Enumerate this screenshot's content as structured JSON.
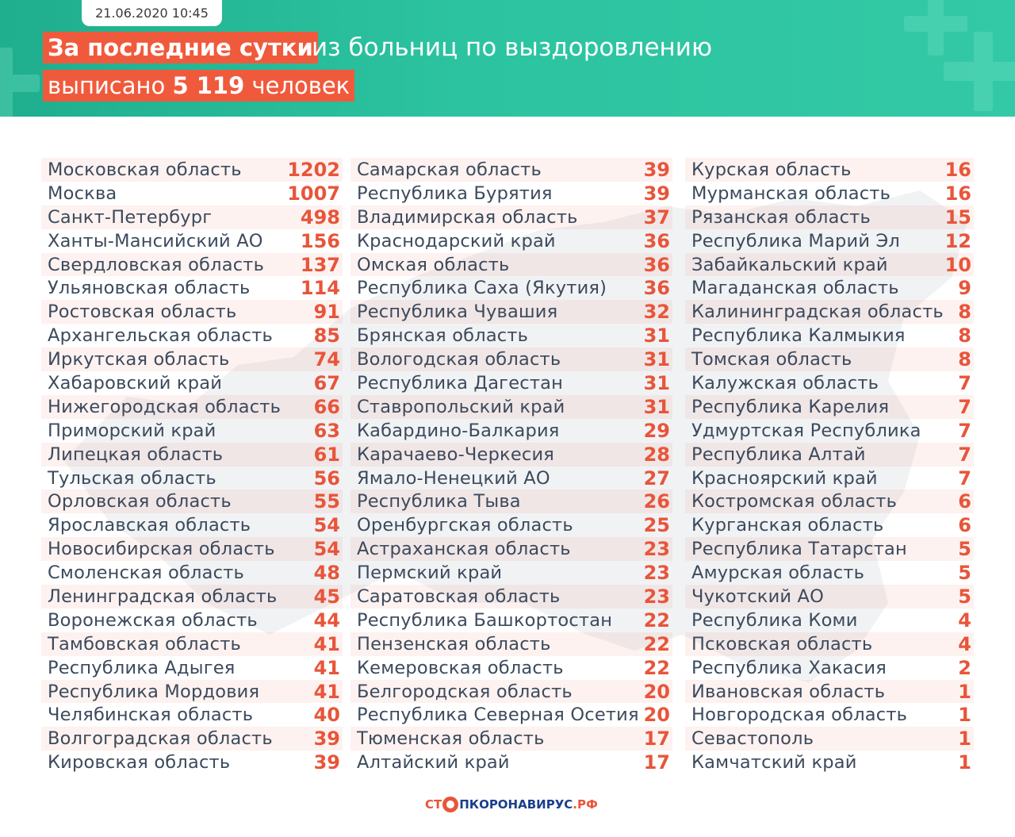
{
  "header": {
    "date": "21.06.2020 10:45",
    "highlight": "За последние сутки",
    "line1_rest": "из больниц по выздоровлению",
    "line2_prefix": "выписано",
    "line2_number": "5 119",
    "line2_suffix": "человек",
    "accent_color": "#f05a3c",
    "bg_color": "#2cc3a0"
  },
  "columns": [
    [
      {
        "name": "Московская область",
        "value": "1202"
      },
      {
        "name": "Москва",
        "value": "1007"
      },
      {
        "name": "Санкт-Петербург",
        "value": "498"
      },
      {
        "name": "Ханты-Мансийский АО",
        "value": "156"
      },
      {
        "name": "Свердловская область",
        "value": "137"
      },
      {
        "name": "Ульяновская область",
        "value": "114"
      },
      {
        "name": "Ростовская область",
        "value": "91"
      },
      {
        "name": "Архангельская область",
        "value": "85"
      },
      {
        "name": "Иркутская область",
        "value": "74"
      },
      {
        "name": "Хабаровский край",
        "value": "67"
      },
      {
        "name": "Нижегородская область",
        "value": "66"
      },
      {
        "name": "Приморский край",
        "value": "63"
      },
      {
        "name": "Липецкая область",
        "value": "61"
      },
      {
        "name": "Тульская область",
        "value": "56"
      },
      {
        "name": "Орловская область",
        "value": "55"
      },
      {
        "name": "Ярославская область",
        "value": "54"
      },
      {
        "name": "Новосибирская область",
        "value": "54"
      },
      {
        "name": "Смоленская область",
        "value": "48"
      },
      {
        "name": "Ленинградская область",
        "value": "45"
      },
      {
        "name": "Воронежская область",
        "value": "44"
      },
      {
        "name": "Тамбовская область",
        "value": "41"
      },
      {
        "name": "Республика Адыгея",
        "value": "41"
      },
      {
        "name": "Республика Мордовия",
        "value": "41"
      },
      {
        "name": "Челябинская область",
        "value": "40"
      },
      {
        "name": "Волгоградская область",
        "value": "39"
      },
      {
        "name": "Кировская область",
        "value": "39"
      }
    ],
    [
      {
        "name": "Самарская область",
        "value": "39"
      },
      {
        "name": "Республика Бурятия",
        "value": "39"
      },
      {
        "name": "Владимирская область",
        "value": "37"
      },
      {
        "name": "Краснодарский край",
        "value": "36"
      },
      {
        "name": "Омская область",
        "value": "36"
      },
      {
        "name": "Республика Саха (Якутия)",
        "value": "36"
      },
      {
        "name": "Республика Чувашия",
        "value": "32"
      },
      {
        "name": "Брянская область",
        "value": "31"
      },
      {
        "name": "Вологодская область",
        "value": "31"
      },
      {
        "name": "Республика Дагестан",
        "value": "31"
      },
      {
        "name": "Ставропольский край",
        "value": "31"
      },
      {
        "name": "Кабардино-Балкария",
        "value": "29"
      },
      {
        "name": "Карачаево-Черкесия",
        "value": "28"
      },
      {
        "name": "Ямало-Ненецкий АО",
        "value": "27"
      },
      {
        "name": "Республика Тыва",
        "value": "26"
      },
      {
        "name": "Оренбургская область",
        "value": "25"
      },
      {
        "name": "Астраханская область",
        "value": "23"
      },
      {
        "name": "Пермский край",
        "value": "23"
      },
      {
        "name": "Саратовская область",
        "value": "23"
      },
      {
        "name": "Республика Башкортостан",
        "value": "22"
      },
      {
        "name": "Пензенская область",
        "value": "22"
      },
      {
        "name": "Кемеровская область",
        "value": "22"
      },
      {
        "name": "Белгородская область",
        "value": "20"
      },
      {
        "name": "Республика Северная Осетия",
        "value": "20"
      },
      {
        "name": "Тюменская область",
        "value": "17"
      },
      {
        "name": "Алтайский край",
        "value": "17"
      }
    ],
    [
      {
        "name": "Курская область",
        "value": "16"
      },
      {
        "name": "Мурманская область",
        "value": "16"
      },
      {
        "name": "Рязанская область",
        "value": "15"
      },
      {
        "name": "Республика Марий Эл",
        "value": "12"
      },
      {
        "name": "Забайкальский край",
        "value": "10"
      },
      {
        "name": "Магаданская область",
        "value": "9"
      },
      {
        "name": "Калининградская область",
        "value": "8"
      },
      {
        "name": "Республика Калмыкия",
        "value": "8"
      },
      {
        "name": "Томская область",
        "value": "8"
      },
      {
        "name": "Калужская область",
        "value": "7"
      },
      {
        "name": "Республика Карелия",
        "value": "7"
      },
      {
        "name": "Удмуртская Республика",
        "value": "7"
      },
      {
        "name": "Республика Алтай",
        "value": "7"
      },
      {
        "name": "Красноярский край",
        "value": "7"
      },
      {
        "name": "Костромская область",
        "value": "6"
      },
      {
        "name": "Курганская область",
        "value": "6"
      },
      {
        "name": "Республика Татарстан",
        "value": "5"
      },
      {
        "name": "Амурская область",
        "value": "5"
      },
      {
        "name": "Чукотский АО",
        "value": "5"
      },
      {
        "name": "Республика Коми",
        "value": "4"
      },
      {
        "name": "Псковская область",
        "value": "4"
      },
      {
        "name": "Республика Хакасия",
        "value": "2"
      },
      {
        "name": "Ивановская область",
        "value": "1"
      },
      {
        "name": "Новгородская область",
        "value": "1"
      },
      {
        "name": "Севастополь",
        "value": "1"
      },
      {
        "name": "Камчатский край",
        "value": "1"
      }
    ]
  ],
  "footer": {
    "logo_part1": "СТ",
    "logo_part2": "ПКОРОНАВИРУС",
    "logo_part3": ".РФ"
  }
}
